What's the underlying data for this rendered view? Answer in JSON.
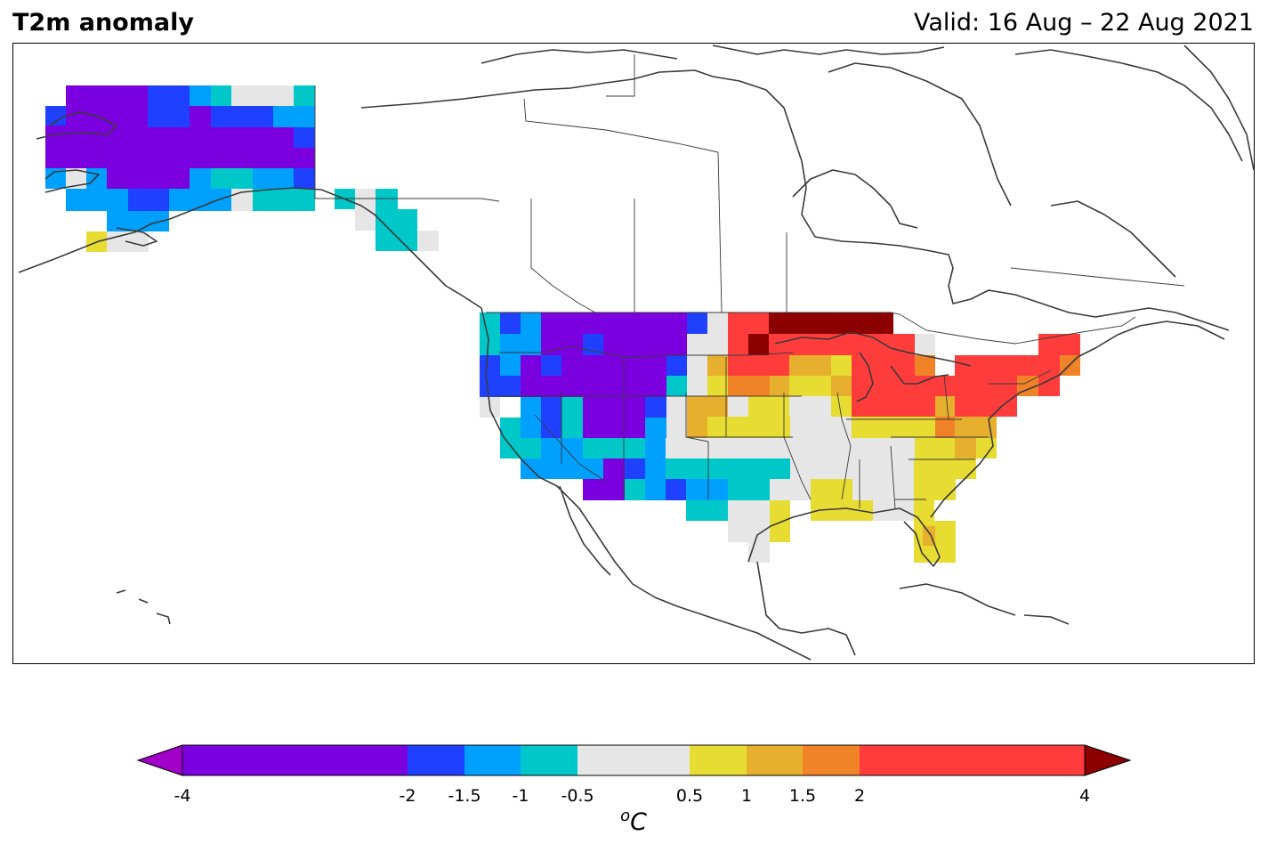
{
  "header": {
    "title": "T2m anomaly",
    "valid": "Valid: 16 Aug – 22 Aug 2021"
  },
  "legend": {
    "unit_base": "C",
    "unit_sup": "o",
    "ticks": [
      "-4",
      "-2",
      "-1.5",
      "-1",
      "-0.5",
      "0.5",
      "1",
      "1.5",
      "2",
      "4"
    ],
    "tick_values": [
      -4,
      -2,
      -1.5,
      -1,
      -0.5,
      0.5,
      1,
      1.5,
      2,
      4
    ],
    "bins": [
      {
        "from": -4,
        "to": -2,
        "color": "#7b00e0"
      },
      {
        "from": -2,
        "to": -1.5,
        "color": "#2040ff"
      },
      {
        "from": -1.5,
        "to": -1,
        "color": "#00a0ff"
      },
      {
        "from": -1,
        "to": -0.5,
        "color": "#00c8c8"
      },
      {
        "from": -0.5,
        "to": 0.5,
        "color": "#e6e6e6"
      },
      {
        "from": 0.5,
        "to": 1,
        "color": "#e6dc32"
      },
      {
        "from": 1,
        "to": 1.5,
        "color": "#e6af2d"
      },
      {
        "from": 1.5,
        "to": 2,
        "color": "#f08228"
      },
      {
        "from": 2,
        "to": 4,
        "color": "#ff3c3c"
      }
    ],
    "under_color": "#a000c8",
    "over_color": "#8c0000"
  }
}
